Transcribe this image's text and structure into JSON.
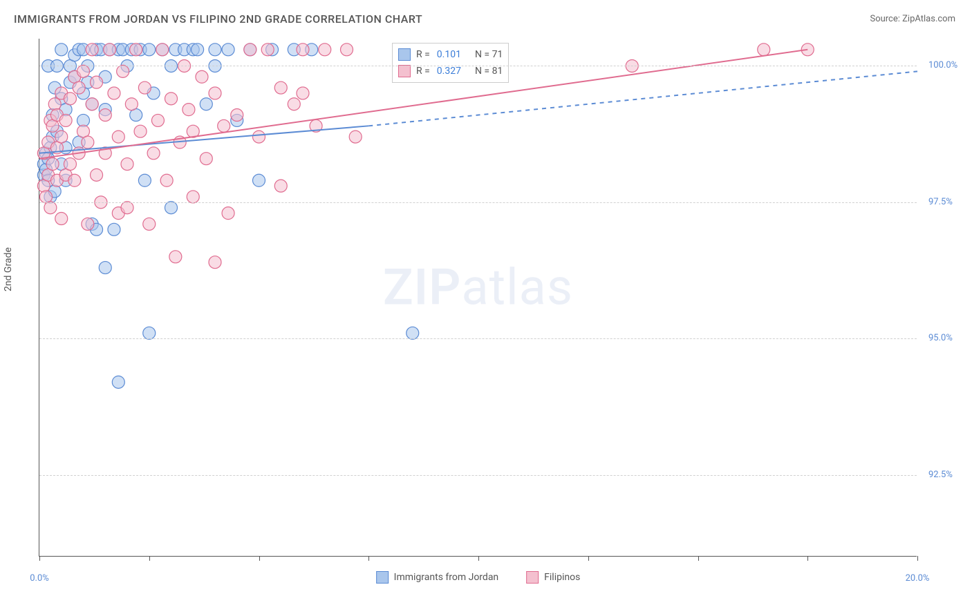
{
  "title": "IMMIGRANTS FROM JORDAN VS FILIPINO 2ND GRADE CORRELATION CHART",
  "source": "Source: ZipAtlas.com",
  "y_axis_label": "2nd Grade",
  "watermark_bold": "ZIP",
  "watermark_light": "atlas",
  "chart": {
    "type": "scatter",
    "xlim": [
      0,
      20
    ],
    "ylim": [
      91.0,
      100.5
    ],
    "x_ticks": [
      0,
      2.5,
      5,
      7.5,
      10,
      12.5,
      15,
      17.5,
      20
    ],
    "x_tick_labels_shown": {
      "0": "0.0%",
      "20": "20.0%"
    },
    "y_gridlines": [
      92.5,
      95.0,
      97.5,
      100.0
    ],
    "y_tick_labels": {
      "92.5": "92.5%",
      "95.0": "95.0%",
      "97.5": "97.5%",
      "100.0": "100.0%"
    },
    "background_color": "#ffffff",
    "grid_color": "#d0d0d0",
    "axis_color": "#555555",
    "marker_radius": 9,
    "marker_opacity": 0.55,
    "marker_stroke_width": 1.2,
    "series": [
      {
        "name": "Immigrants from Jordan",
        "fill": "#a9c6ec",
        "stroke": "#5b8bd4",
        "R": "0.101",
        "N": "71",
        "trend": {
          "x1": 0,
          "y1": 98.4,
          "x2": 7.5,
          "y2": 98.9,
          "dash_x2": 20,
          "dash_y2": 99.9,
          "width": 2
        },
        "points": [
          [
            0.1,
            98.0
          ],
          [
            0.1,
            98.2
          ],
          [
            0.15,
            98.1
          ],
          [
            0.15,
            98.4
          ],
          [
            0.2,
            97.9
          ],
          [
            0.2,
            98.3
          ],
          [
            0.2,
            100.0
          ],
          [
            0.25,
            97.6
          ],
          [
            0.25,
            98.5
          ],
          [
            0.3,
            98.7
          ],
          [
            0.3,
            99.1
          ],
          [
            0.35,
            97.7
          ],
          [
            0.35,
            99.6
          ],
          [
            0.4,
            98.8
          ],
          [
            0.4,
            100.0
          ],
          [
            0.5,
            98.2
          ],
          [
            0.5,
            99.4
          ],
          [
            0.5,
            100.3
          ],
          [
            0.6,
            97.9
          ],
          [
            0.6,
            98.5
          ],
          [
            0.6,
            99.2
          ],
          [
            0.7,
            99.7
          ],
          [
            0.7,
            100.0
          ],
          [
            0.8,
            99.8
          ],
          [
            0.8,
            100.2
          ],
          [
            0.9,
            100.3
          ],
          [
            0.9,
            98.6
          ],
          [
            1.0,
            99.0
          ],
          [
            1.0,
            99.5
          ],
          [
            1.0,
            100.3
          ],
          [
            1.1,
            99.7
          ],
          [
            1.1,
            100.0
          ],
          [
            1.2,
            97.1
          ],
          [
            1.2,
            99.3
          ],
          [
            1.3,
            97.0
          ],
          [
            1.3,
            100.3
          ],
          [
            1.4,
            100.3
          ],
          [
            1.5,
            99.2
          ],
          [
            1.5,
            99.8
          ],
          [
            1.5,
            96.3
          ],
          [
            1.6,
            100.3
          ],
          [
            1.7,
            97.0
          ],
          [
            1.8,
            100.3
          ],
          [
            1.8,
            94.2
          ],
          [
            1.9,
            100.3
          ],
          [
            2.0,
            100.0
          ],
          [
            2.1,
            100.3
          ],
          [
            2.2,
            99.1
          ],
          [
            2.3,
            100.3
          ],
          [
            2.4,
            97.9
          ],
          [
            2.5,
            100.3
          ],
          [
            2.5,
            95.1
          ],
          [
            2.6,
            99.5
          ],
          [
            2.8,
            100.3
          ],
          [
            3.0,
            97.4
          ],
          [
            3.0,
            100.0
          ],
          [
            3.1,
            100.3
          ],
          [
            3.3,
            100.3
          ],
          [
            3.5,
            100.3
          ],
          [
            3.6,
            100.3
          ],
          [
            3.8,
            99.3
          ],
          [
            4.0,
            100.3
          ],
          [
            4.0,
            100.0
          ],
          [
            4.3,
            100.3
          ],
          [
            4.5,
            99.0
          ],
          [
            4.8,
            100.3
          ],
          [
            5.0,
            97.9
          ],
          [
            5.3,
            100.3
          ],
          [
            5.8,
            100.3
          ],
          [
            6.2,
            100.3
          ],
          [
            8.5,
            95.1
          ]
        ]
      },
      {
        "name": "Filipinos",
        "fill": "#f4c0cf",
        "stroke": "#e06b8f",
        "R": "0.327",
        "N": "81",
        "trend": {
          "x1": 0,
          "y1": 98.3,
          "x2": 17.5,
          "y2": 100.3,
          "dash_x2": null,
          "dash_y2": null,
          "width": 2
        },
        "points": [
          [
            0.1,
            97.8
          ],
          [
            0.1,
            98.4
          ],
          [
            0.15,
            97.6
          ],
          [
            0.2,
            98.0
          ],
          [
            0.2,
            98.6
          ],
          [
            0.25,
            97.4
          ],
          [
            0.25,
            99.0
          ],
          [
            0.3,
            98.2
          ],
          [
            0.3,
            98.9
          ],
          [
            0.35,
            99.3
          ],
          [
            0.4,
            97.9
          ],
          [
            0.4,
            98.5
          ],
          [
            0.4,
            99.1
          ],
          [
            0.5,
            97.2
          ],
          [
            0.5,
            98.7
          ],
          [
            0.5,
            99.5
          ],
          [
            0.6,
            98.0
          ],
          [
            0.6,
            99.0
          ],
          [
            0.7,
            99.4
          ],
          [
            0.7,
            98.2
          ],
          [
            0.8,
            99.8
          ],
          [
            0.8,
            97.9
          ],
          [
            0.9,
            98.4
          ],
          [
            0.9,
            99.6
          ],
          [
            1.0,
            98.8
          ],
          [
            1.0,
            99.9
          ],
          [
            1.1,
            97.1
          ],
          [
            1.1,
            98.6
          ],
          [
            1.2,
            99.3
          ],
          [
            1.2,
            100.3
          ],
          [
            1.3,
            98.0
          ],
          [
            1.3,
            99.7
          ],
          [
            1.4,
            97.5
          ],
          [
            1.5,
            99.1
          ],
          [
            1.5,
            98.4
          ],
          [
            1.6,
            100.3
          ],
          [
            1.7,
            99.5
          ],
          [
            1.8,
            98.7
          ],
          [
            1.8,
            97.3
          ],
          [
            1.9,
            99.9
          ],
          [
            2.0,
            98.2
          ],
          [
            2.0,
            97.4
          ],
          [
            2.1,
            99.3
          ],
          [
            2.2,
            100.3
          ],
          [
            2.3,
            98.8
          ],
          [
            2.4,
            99.6
          ],
          [
            2.5,
            97.1
          ],
          [
            2.6,
            98.4
          ],
          [
            2.7,
            99.0
          ],
          [
            2.8,
            100.3
          ],
          [
            2.9,
            97.9
          ],
          [
            3.0,
            99.4
          ],
          [
            3.1,
            96.5
          ],
          [
            3.2,
            98.6
          ],
          [
            3.3,
            100.0
          ],
          [
            3.4,
            99.2
          ],
          [
            3.5,
            98.8
          ],
          [
            3.5,
            97.6
          ],
          [
            3.7,
            99.8
          ],
          [
            3.8,
            98.3
          ],
          [
            4.0,
            99.5
          ],
          [
            4.0,
            96.4
          ],
          [
            4.2,
            98.9
          ],
          [
            4.3,
            97.3
          ],
          [
            4.5,
            99.1
          ],
          [
            4.8,
            100.3
          ],
          [
            5.0,
            98.7
          ],
          [
            5.2,
            100.3
          ],
          [
            5.5,
            99.6
          ],
          [
            5.5,
            97.8
          ],
          [
            5.8,
            99.3
          ],
          [
            6.0,
            100.3
          ],
          [
            6.0,
            99.5
          ],
          [
            6.3,
            98.9
          ],
          [
            6.5,
            100.3
          ],
          [
            7.0,
            100.3
          ],
          [
            7.2,
            98.7
          ],
          [
            10.5,
            100.3
          ],
          [
            13.5,
            100.0
          ],
          [
            16.5,
            100.3
          ],
          [
            17.5,
            100.3
          ]
        ]
      }
    ],
    "legend_bottom": [
      {
        "label": "Immigrants from Jordan",
        "fill": "#a9c6ec",
        "stroke": "#5b8bd4"
      },
      {
        "label": "Filipinos",
        "fill": "#f4c0cf",
        "stroke": "#e06b8f"
      }
    ]
  }
}
